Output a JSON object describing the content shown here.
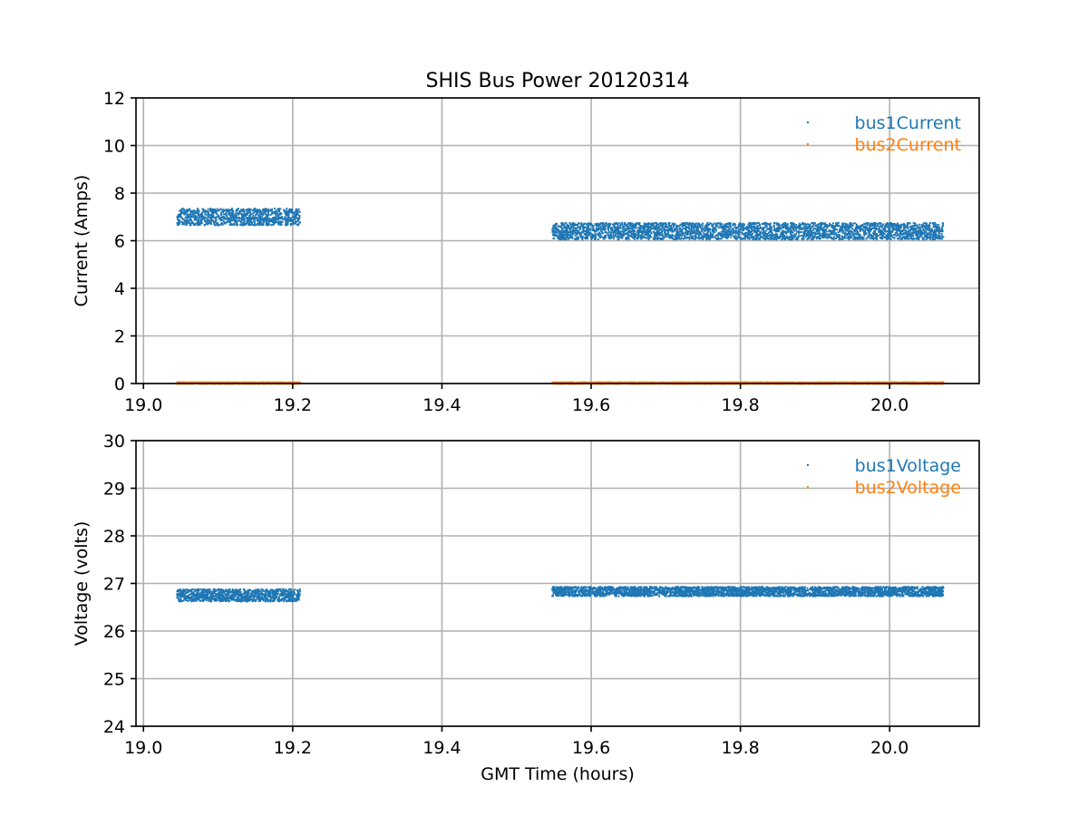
{
  "chart_data": [
    {
      "type": "scatter",
      "title": "SHIS Bus Power 20120314",
      "xlabel": "",
      "ylabel": "Current (Amps)",
      "xlim": [
        18.99,
        20.12
      ],
      "ylim": [
        0,
        12
      ],
      "xticks": [
        19.0,
        19.2,
        19.4,
        19.6,
        19.8,
        20.0
      ],
      "xtick_labels": [
        "19.0",
        "19.2",
        "19.4",
        "19.6",
        "19.8",
        "20.0"
      ],
      "yticks": [
        0,
        2,
        4,
        6,
        8,
        10,
        12
      ],
      "ytick_labels": [
        "0",
        "2",
        "4",
        "6",
        "8",
        "10",
        "12"
      ],
      "grid": true,
      "legend_position": "top-right",
      "series": [
        {
          "name": "bus1Current",
          "color": "#1f77b4",
          "segments": [
            {
              "x_start": 19.045,
              "x_end": 19.21,
              "y_mean": 7.0,
              "y_spread": 0.35
            },
            {
              "x_start": 19.548,
              "x_end": 20.072,
              "y_mean": 6.4,
              "y_spread": 0.35
            }
          ]
        },
        {
          "name": "bus2Current",
          "color": "#ff7f0e",
          "segments": [
            {
              "x_start": 19.045,
              "x_end": 19.21,
              "y_mean": 0.02,
              "y_spread": 0.03
            },
            {
              "x_start": 19.548,
              "x_end": 20.072,
              "y_mean": 0.02,
              "y_spread": 0.03
            }
          ]
        }
      ]
    },
    {
      "type": "scatter",
      "title": "",
      "xlabel": "GMT Time (hours)",
      "ylabel": "Voltage (volts)",
      "xlim": [
        18.99,
        20.12
      ],
      "ylim": [
        24,
        30
      ],
      "xticks": [
        19.0,
        19.2,
        19.4,
        19.6,
        19.8,
        20.0
      ],
      "xtick_labels": [
        "19.0",
        "19.2",
        "19.4",
        "19.6",
        "19.8",
        "20.0"
      ],
      "yticks": [
        24,
        25,
        26,
        27,
        28,
        29,
        30
      ],
      "ytick_labels": [
        "24",
        "25",
        "26",
        "27",
        "28",
        "29",
        "30"
      ],
      "grid": true,
      "legend_position": "top-right",
      "series": [
        {
          "name": "bus1Voltage",
          "color": "#1f77b4",
          "segments": [
            {
              "x_start": 19.045,
              "x_end": 19.21,
              "y_mean": 26.75,
              "y_spread": 0.13
            },
            {
              "x_start": 19.548,
              "x_end": 20.072,
              "y_mean": 26.83,
              "y_spread": 0.1
            }
          ]
        },
        {
          "name": "bus2Voltage",
          "color": "#ff7f0e",
          "segments": []
        }
      ]
    }
  ]
}
